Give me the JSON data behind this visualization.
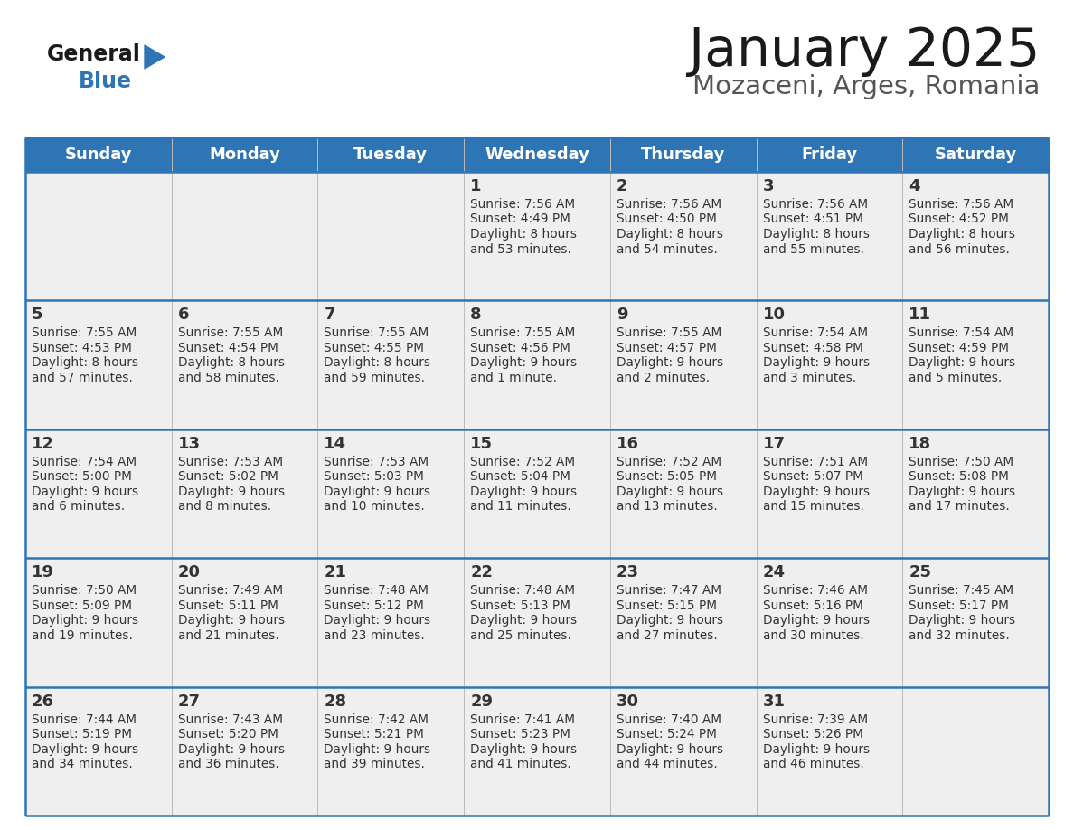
{
  "title": "January 2025",
  "subtitle": "Mozaceni, Arges, Romania",
  "days_of_week": [
    "Sunday",
    "Monday",
    "Tuesday",
    "Wednesday",
    "Thursday",
    "Friday",
    "Saturday"
  ],
  "header_bg": "#2E75B6",
  "header_text_color": "#FFFFFF",
  "cell_bg_light": "#EFEFEF",
  "divider_color": "#2E75B6",
  "cell_line_color": "#BBBBBB",
  "text_color": "#333333",
  "title_color": "#1a1a1a",
  "subtitle_color": "#555555",
  "logo_general_color": "#1a1a1a",
  "logo_blue_color": "#2E75B6",
  "calendar_data": [
    {
      "day": 1,
      "col": 3,
      "row": 0,
      "sunrise": "7:56 AM",
      "sunset": "4:49 PM",
      "daylight_h": "8 hours",
      "daylight_m": "53 minutes."
    },
    {
      "day": 2,
      "col": 4,
      "row": 0,
      "sunrise": "7:56 AM",
      "sunset": "4:50 PM",
      "daylight_h": "8 hours",
      "daylight_m": "54 minutes."
    },
    {
      "day": 3,
      "col": 5,
      "row": 0,
      "sunrise": "7:56 AM",
      "sunset": "4:51 PM",
      "daylight_h": "8 hours",
      "daylight_m": "55 minutes."
    },
    {
      "day": 4,
      "col": 6,
      "row": 0,
      "sunrise": "7:56 AM",
      "sunset": "4:52 PM",
      "daylight_h": "8 hours",
      "daylight_m": "56 minutes."
    },
    {
      "day": 5,
      "col": 0,
      "row": 1,
      "sunrise": "7:55 AM",
      "sunset": "4:53 PM",
      "daylight_h": "8 hours",
      "daylight_m": "57 minutes."
    },
    {
      "day": 6,
      "col": 1,
      "row": 1,
      "sunrise": "7:55 AM",
      "sunset": "4:54 PM",
      "daylight_h": "8 hours",
      "daylight_m": "58 minutes."
    },
    {
      "day": 7,
      "col": 2,
      "row": 1,
      "sunrise": "7:55 AM",
      "sunset": "4:55 PM",
      "daylight_h": "8 hours",
      "daylight_m": "59 minutes."
    },
    {
      "day": 8,
      "col": 3,
      "row": 1,
      "sunrise": "7:55 AM",
      "sunset": "4:56 PM",
      "daylight_h": "9 hours",
      "daylight_m": "1 minute."
    },
    {
      "day": 9,
      "col": 4,
      "row": 1,
      "sunrise": "7:55 AM",
      "sunset": "4:57 PM",
      "daylight_h": "9 hours",
      "daylight_m": "2 minutes."
    },
    {
      "day": 10,
      "col": 5,
      "row": 1,
      "sunrise": "7:54 AM",
      "sunset": "4:58 PM",
      "daylight_h": "9 hours",
      "daylight_m": "3 minutes."
    },
    {
      "day": 11,
      "col": 6,
      "row": 1,
      "sunrise": "7:54 AM",
      "sunset": "4:59 PM",
      "daylight_h": "9 hours",
      "daylight_m": "5 minutes."
    },
    {
      "day": 12,
      "col": 0,
      "row": 2,
      "sunrise": "7:54 AM",
      "sunset": "5:00 PM",
      "daylight_h": "9 hours",
      "daylight_m": "6 minutes."
    },
    {
      "day": 13,
      "col": 1,
      "row": 2,
      "sunrise": "7:53 AM",
      "sunset": "5:02 PM",
      "daylight_h": "9 hours",
      "daylight_m": "8 minutes."
    },
    {
      "day": 14,
      "col": 2,
      "row": 2,
      "sunrise": "7:53 AM",
      "sunset": "5:03 PM",
      "daylight_h": "9 hours",
      "daylight_m": "10 minutes."
    },
    {
      "day": 15,
      "col": 3,
      "row": 2,
      "sunrise": "7:52 AM",
      "sunset": "5:04 PM",
      "daylight_h": "9 hours",
      "daylight_m": "11 minutes."
    },
    {
      "day": 16,
      "col": 4,
      "row": 2,
      "sunrise": "7:52 AM",
      "sunset": "5:05 PM",
      "daylight_h": "9 hours",
      "daylight_m": "13 minutes."
    },
    {
      "day": 17,
      "col": 5,
      "row": 2,
      "sunrise": "7:51 AM",
      "sunset": "5:07 PM",
      "daylight_h": "9 hours",
      "daylight_m": "15 minutes."
    },
    {
      "day": 18,
      "col": 6,
      "row": 2,
      "sunrise": "7:50 AM",
      "sunset": "5:08 PM",
      "daylight_h": "9 hours",
      "daylight_m": "17 minutes."
    },
    {
      "day": 19,
      "col": 0,
      "row": 3,
      "sunrise": "7:50 AM",
      "sunset": "5:09 PM",
      "daylight_h": "9 hours",
      "daylight_m": "19 minutes."
    },
    {
      "day": 20,
      "col": 1,
      "row": 3,
      "sunrise": "7:49 AM",
      "sunset": "5:11 PM",
      "daylight_h": "9 hours",
      "daylight_m": "21 minutes."
    },
    {
      "day": 21,
      "col": 2,
      "row": 3,
      "sunrise": "7:48 AM",
      "sunset": "5:12 PM",
      "daylight_h": "9 hours",
      "daylight_m": "23 minutes."
    },
    {
      "day": 22,
      "col": 3,
      "row": 3,
      "sunrise": "7:48 AM",
      "sunset": "5:13 PM",
      "daylight_h": "9 hours",
      "daylight_m": "25 minutes."
    },
    {
      "day": 23,
      "col": 4,
      "row": 3,
      "sunrise": "7:47 AM",
      "sunset": "5:15 PM",
      "daylight_h": "9 hours",
      "daylight_m": "27 minutes."
    },
    {
      "day": 24,
      "col": 5,
      "row": 3,
      "sunrise": "7:46 AM",
      "sunset": "5:16 PM",
      "daylight_h": "9 hours",
      "daylight_m": "30 minutes."
    },
    {
      "day": 25,
      "col": 6,
      "row": 3,
      "sunrise": "7:45 AM",
      "sunset": "5:17 PM",
      "daylight_h": "9 hours",
      "daylight_m": "32 minutes."
    },
    {
      "day": 26,
      "col": 0,
      "row": 4,
      "sunrise": "7:44 AM",
      "sunset": "5:19 PM",
      "daylight_h": "9 hours",
      "daylight_m": "34 minutes."
    },
    {
      "day": 27,
      "col": 1,
      "row": 4,
      "sunrise": "7:43 AM",
      "sunset": "5:20 PM",
      "daylight_h": "9 hours",
      "daylight_m": "36 minutes."
    },
    {
      "day": 28,
      "col": 2,
      "row": 4,
      "sunrise": "7:42 AM",
      "sunset": "5:21 PM",
      "daylight_h": "9 hours",
      "daylight_m": "39 minutes."
    },
    {
      "day": 29,
      "col": 3,
      "row": 4,
      "sunrise": "7:41 AM",
      "sunset": "5:23 PM",
      "daylight_h": "9 hours",
      "daylight_m": "41 minutes."
    },
    {
      "day": 30,
      "col": 4,
      "row": 4,
      "sunrise": "7:40 AM",
      "sunset": "5:24 PM",
      "daylight_h": "9 hours",
      "daylight_m": "44 minutes."
    },
    {
      "day": 31,
      "col": 5,
      "row": 4,
      "sunrise": "7:39 AM",
      "sunset": "5:26 PM",
      "daylight_h": "9 hours",
      "daylight_m": "46 minutes."
    }
  ]
}
